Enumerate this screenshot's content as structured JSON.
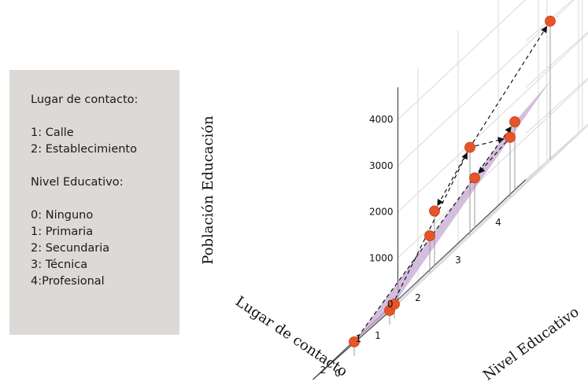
{
  "legend": {
    "lugar_heading": "Lugar de contacto:",
    "lugar_items": [
      "1: Calle",
      "2: Establecimiento"
    ],
    "nivel_heading": "Nivel Educativo:",
    "nivel_items": [
      "0: Ninguno",
      "1: Primaria",
      "2: Secundaria",
      "3: Técnica",
      "4:Profesional"
    ]
  },
  "colors": {
    "point": "#e8542a",
    "plane": "#c6a8d2",
    "grid": "#d9d9d9",
    "stem": "#999999",
    "legend_bg": "#dcd9d7"
  },
  "chart_data": {
    "type": "scatter",
    "projection": "3d",
    "zlabel": "Población Educación",
    "xlabel": "Lugar de contacto",
    "ylabel": "Nivel Educativo",
    "x_ticks": [
      "1",
      "2"
    ],
    "y_ticks": [
      "0",
      "1",
      "2",
      "3",
      "4"
    ],
    "z_ticks": [
      "0",
      "1000",
      "2000",
      "3000",
      "4000"
    ],
    "zlim": [
      0,
      4000
    ],
    "grid": true,
    "points": [
      {
        "lugar": 1,
        "nivel": 0,
        "poblacion": 0
      },
      {
        "lugar": 1,
        "nivel": 1,
        "poblacion": 800
      },
      {
        "lugar": 1,
        "nivel": 2,
        "poblacion": 1900
      },
      {
        "lugar": 1,
        "nivel": 3,
        "poblacion": 1300
      },
      {
        "lugar": 1,
        "nivel": 4,
        "poblacion": 3000
      },
      {
        "lugar": 2,
        "nivel": 0,
        "poblacion": 0
      },
      {
        "lugar": 2,
        "nivel": 1,
        "poblacion": 0
      },
      {
        "lugar": 2,
        "nivel": 2,
        "poblacion": 1200
      },
      {
        "lugar": 2,
        "nivel": 3,
        "poblacion": 1100
      },
      {
        "lugar": 2,
        "nivel": 4,
        "poblacion": 1500
      }
    ],
    "arrows": [
      {
        "from": [
          1,
          0
        ],
        "to": [
          1,
          2
        ]
      },
      {
        "from": [
          1,
          2
        ],
        "to": [
          1,
          4
        ]
      },
      {
        "from": [
          1,
          2
        ],
        "to": [
          1,
          3
        ]
      },
      {
        "from": [
          1,
          2
        ],
        "to": [
          2,
          2
        ]
      },
      {
        "from": [
          1,
          3
        ],
        "to": [
          2,
          3
        ]
      },
      {
        "from": [
          2,
          0
        ],
        "to": [
          2,
          4
        ]
      }
    ]
  }
}
